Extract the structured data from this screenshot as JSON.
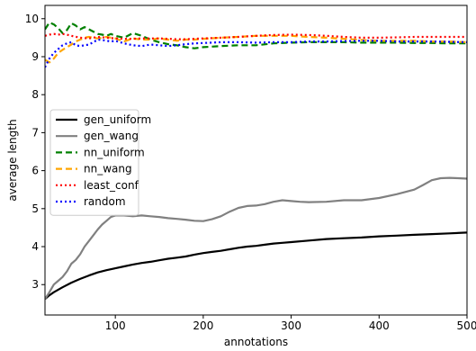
{
  "chart_data": {
    "type": "line",
    "xlabel": "annotations",
    "ylabel": "average length",
    "xlim": [
      20,
      500
    ],
    "ylim": [
      2.2,
      10.35
    ],
    "xticks": [
      100,
      200,
      300,
      400,
      500
    ],
    "yticks": [
      3,
      4,
      5,
      6,
      7,
      8,
      9,
      10
    ],
    "legend_position": "center-left",
    "grid": false,
    "series": [
      {
        "name": "gen_uniform",
        "color": "#000000",
        "dash": "solid",
        "width": 2.2,
        "x": [
          20,
          25,
          30,
          40,
          50,
          60,
          70,
          80,
          90,
          100,
          110,
          120,
          130,
          140,
          150,
          160,
          170,
          180,
          190,
          200,
          210,
          220,
          230,
          240,
          250,
          260,
          270,
          280,
          290,
          300,
          320,
          340,
          360,
          380,
          400,
          420,
          440,
          460,
          480,
          500
        ],
        "y": [
          2.62,
          2.72,
          2.8,
          2.93,
          3.05,
          3.15,
          3.24,
          3.32,
          3.38,
          3.43,
          3.48,
          3.53,
          3.57,
          3.6,
          3.64,
          3.68,
          3.71,
          3.74,
          3.79,
          3.83,
          3.86,
          3.89,
          3.93,
          3.97,
          4.0,
          4.02,
          4.05,
          4.08,
          4.1,
          4.12,
          4.16,
          4.2,
          4.22,
          4.24,
          4.27,
          4.29,
          4.31,
          4.33,
          4.35,
          4.37
        ]
      },
      {
        "name": "gen_wang",
        "color": "#808080",
        "dash": "solid",
        "width": 2.2,
        "x": [
          20,
          25,
          30,
          35,
          40,
          45,
          50,
          55,
          60,
          65,
          70,
          75,
          80,
          85,
          90,
          95,
          100,
          110,
          120,
          130,
          140,
          150,
          160,
          170,
          180,
          190,
          200,
          210,
          220,
          230,
          240,
          250,
          260,
          270,
          280,
          290,
          300,
          310,
          320,
          340,
          360,
          380,
          400,
          420,
          440,
          450,
          460,
          470,
          480,
          490,
          500
        ],
        "y": [
          2.62,
          2.8,
          3.0,
          3.1,
          3.2,
          3.35,
          3.55,
          3.65,
          3.8,
          4.0,
          4.15,
          4.3,
          4.45,
          4.58,
          4.68,
          4.78,
          4.82,
          4.82,
          4.8,
          4.82,
          4.8,
          4.78,
          4.75,
          4.73,
          4.71,
          4.68,
          4.67,
          4.72,
          4.8,
          4.92,
          5.02,
          5.07,
          5.08,
          5.12,
          5.18,
          5.22,
          5.2,
          5.18,
          5.17,
          5.18,
          5.22,
          5.22,
          5.28,
          5.38,
          5.5,
          5.62,
          5.75,
          5.8,
          5.81,
          5.8,
          5.79
        ]
      },
      {
        "name": "nn_uniform",
        "color": "#008000",
        "dash": "dashed",
        "width": 2.2,
        "x": [
          20,
          25,
          30,
          35,
          40,
          45,
          50,
          55,
          60,
          65,
          70,
          75,
          80,
          85,
          90,
          95,
          100,
          110,
          120,
          130,
          140,
          150,
          160,
          170,
          180,
          190,
          200,
          220,
          240,
          260,
          280,
          300,
          320,
          340,
          360,
          380,
          400,
          420,
          440,
          460,
          480,
          500
        ],
        "y": [
          9.72,
          9.9,
          9.85,
          9.75,
          9.62,
          9.7,
          9.88,
          9.82,
          9.72,
          9.78,
          9.72,
          9.66,
          9.6,
          9.58,
          9.55,
          9.6,
          9.55,
          9.5,
          9.62,
          9.55,
          9.45,
          9.38,
          9.33,
          9.3,
          9.25,
          9.22,
          9.25,
          9.28,
          9.3,
          9.3,
          9.35,
          9.37,
          9.38,
          9.38,
          9.38,
          9.37,
          9.37,
          9.37,
          9.36,
          9.36,
          9.35,
          9.35
        ]
      },
      {
        "name": "nn_wang",
        "color": "#FFA500",
        "dash": "dashed",
        "width": 2.2,
        "x": [
          20,
          25,
          30,
          35,
          40,
          45,
          50,
          55,
          60,
          65,
          70,
          75,
          80,
          85,
          90,
          95,
          100,
          110,
          120,
          130,
          140,
          150,
          160,
          170,
          180,
          190,
          200,
          220,
          240,
          260,
          280,
          300,
          320,
          340,
          360,
          380,
          400,
          420,
          440,
          460,
          480,
          500
        ],
        "y": [
          8.92,
          8.85,
          8.95,
          9.1,
          9.18,
          9.25,
          9.32,
          9.4,
          9.45,
          9.5,
          9.52,
          9.5,
          9.48,
          9.5,
          9.52,
          9.5,
          9.48,
          9.4,
          9.48,
          9.45,
          9.45,
          9.48,
          9.45,
          9.42,
          9.45,
          9.45,
          9.47,
          9.5,
          9.52,
          9.55,
          9.55,
          9.55,
          9.52,
          9.5,
          9.47,
          9.44,
          9.42,
          9.42,
          9.42,
          9.4,
          9.4,
          9.38
        ]
      },
      {
        "name": "least_conf",
        "color": "#FF0000",
        "dash": "dotted",
        "width": 2.2,
        "x": [
          20,
          25,
          30,
          35,
          40,
          45,
          50,
          60,
          70,
          80,
          90,
          100,
          110,
          120,
          130,
          140,
          150,
          160,
          170,
          180,
          190,
          200,
          220,
          240,
          260,
          280,
          300,
          320,
          340,
          360,
          380,
          400,
          420,
          440,
          460,
          480,
          500
        ],
        "y": [
          9.55,
          9.58,
          9.6,
          9.58,
          9.6,
          9.58,
          9.55,
          9.5,
          9.48,
          9.52,
          9.5,
          9.48,
          9.47,
          9.47,
          9.48,
          9.48,
          9.48,
          9.47,
          9.46,
          9.46,
          9.47,
          9.48,
          9.5,
          9.52,
          9.55,
          9.57,
          9.58,
          9.57,
          9.55,
          9.52,
          9.5,
          9.5,
          9.51,
          9.52,
          9.52,
          9.52,
          9.52
        ]
      },
      {
        "name": "random",
        "color": "#0000FF",
        "dash": "dotted",
        "width": 2.2,
        "x": [
          20,
          25,
          30,
          35,
          40,
          45,
          50,
          55,
          60,
          65,
          70,
          75,
          80,
          85,
          90,
          95,
          100,
          110,
          120,
          130,
          140,
          150,
          160,
          170,
          180,
          190,
          200,
          220,
          240,
          260,
          280,
          300,
          320,
          340,
          360,
          380,
          400,
          420,
          440,
          460,
          480,
          500
        ],
        "y": [
          8.72,
          8.95,
          9.1,
          9.2,
          9.3,
          9.35,
          9.38,
          9.3,
          9.28,
          9.3,
          9.32,
          9.38,
          9.45,
          9.44,
          9.42,
          9.4,
          9.42,
          9.35,
          9.3,
          9.28,
          9.32,
          9.3,
          9.28,
          9.3,
          9.33,
          9.35,
          9.36,
          9.38,
          9.38,
          9.37,
          9.38,
          9.38,
          9.4,
          9.4,
          9.41,
          9.42,
          9.42,
          9.4,
          9.4,
          9.4,
          9.39,
          9.38
        ]
      }
    ]
  }
}
